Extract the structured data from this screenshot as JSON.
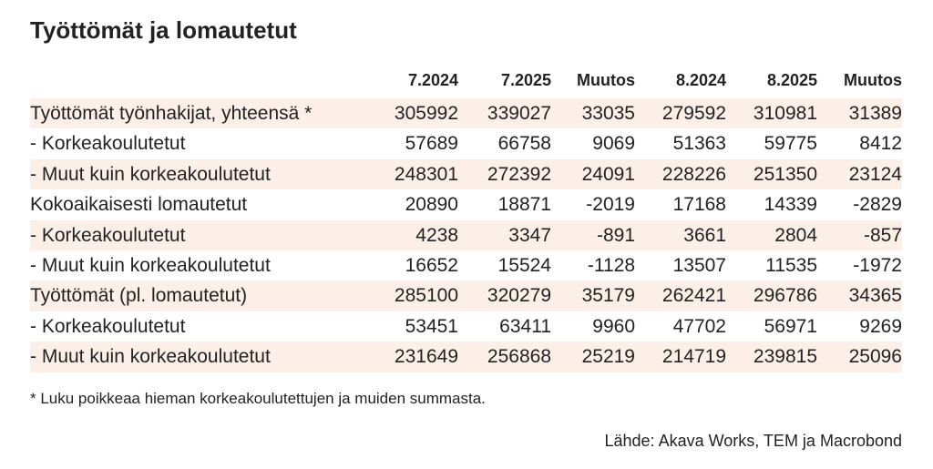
{
  "header": {
    "title": "Työttömät ja lomautetut"
  },
  "table": {
    "columns": [
      "7.2024",
      "7.2025",
      "Muutos",
      "8.2024",
      "8.2025",
      "Muutos"
    ],
    "rows": [
      {
        "label": "Työttömät työnhakijat, yhteensä *",
        "values": [
          305992,
          339027,
          33035,
          279592,
          310981,
          31389
        ]
      },
      {
        "label": "- Korkeakoulutetut",
        "values": [
          57689,
          66758,
          9069,
          51363,
          59775,
          8412
        ]
      },
      {
        "label": "- Muut kuin korkeakoulutetut",
        "values": [
          248301,
          272392,
          24091,
          228226,
          251350,
          23124
        ]
      },
      {
        "label": "Kokoaikaisesti lomautetut",
        "values": [
          20890,
          18871,
          -2019,
          17168,
          14339,
          -2829
        ]
      },
      {
        "label": "- Korkeakoulutetut",
        "values": [
          4238,
          3347,
          -891,
          3661,
          2804,
          -857
        ]
      },
      {
        "label": "- Muut kuin korkeakoulutetut",
        "values": [
          16652,
          15524,
          -1128,
          13507,
          11535,
          -1972
        ]
      },
      {
        "label": "Työttömät (pl. lomautetut)",
        "values": [
          285100,
          320279,
          35179,
          262421,
          296786,
          34365
        ]
      },
      {
        "label": "- Korkeakoulutetut",
        "values": [
          53451,
          63411,
          9960,
          47702,
          56971,
          9269
        ]
      },
      {
        "label": "- Muut kuin korkeakoulutetut",
        "values": [
          231649,
          256868,
          25219,
          214719,
          239815,
          25096
        ]
      }
    ]
  },
  "footer": {
    "note": "* Luku poikkeaa hieman korkeakoulutettujen ja muiden summasta.",
    "source": "Lähde: Akava Works, TEM ja Macrobond"
  }
}
